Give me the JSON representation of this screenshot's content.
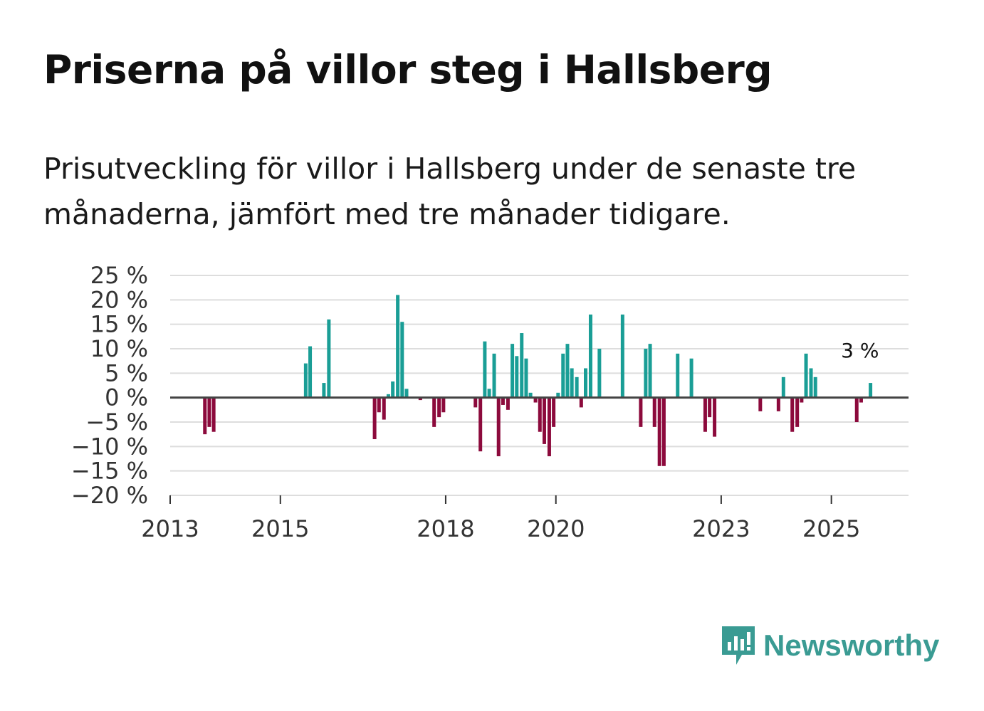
{
  "title": "Priserna på villor steg i Hallsberg",
  "subtitle": "Prisutveckling för villor i Hallsberg under de senaste tre månaderna, jämfört med tre månader tidigare.",
  "brand": {
    "name": "Newsworthy",
    "icon": "newsworthy-logo-icon",
    "color": "#3a9b93"
  },
  "colors": {
    "positive": "#1a9e96",
    "negative": "#8c0a3c",
    "grid": "#dddddd",
    "zero_line": "#444444"
  },
  "chart_data": {
    "type": "bar",
    "title": "",
    "xlabel": "",
    "ylabel": "",
    "ylim": [
      -20,
      25
    ],
    "yticks": [
      25,
      20,
      15,
      10,
      5,
      0,
      -5,
      -10,
      -15,
      -20
    ],
    "ytick_labels": [
      "25 %",
      "20 %",
      "15 %",
      "10 %",
      "5 %",
      "0 %",
      "−5 %",
      "−10 %",
      "−15 %",
      "−20 %"
    ],
    "xlim": [
      2013.0,
      2026.4
    ],
    "xticks": [
      2013,
      2015,
      2018,
      2020,
      2023,
      2025
    ],
    "xtick_labels": [
      "2013",
      "2015",
      "2018",
      "2020",
      "2023",
      "2025"
    ],
    "annotation": {
      "text": "3 %",
      "x": 2025.7,
      "y": 3
    },
    "x": [
      2013.63,
      2013.71,
      2013.79,
      2015.46,
      2015.54,
      2015.79,
      2015.88,
      2016.71,
      2016.79,
      2016.88,
      2016.96,
      2017.04,
      2017.13,
      2017.21,
      2017.29,
      2017.54,
      2017.79,
      2017.88,
      2017.96,
      2018.54,
      2018.63,
      2018.71,
      2018.79,
      2018.88,
      2018.96,
      2019.04,
      2019.13,
      2019.21,
      2019.29,
      2019.38,
      2019.46,
      2019.54,
      2019.63,
      2019.71,
      2019.79,
      2019.88,
      2019.96,
      2020.04,
      2020.13,
      2020.21,
      2020.29,
      2020.38,
      2020.46,
      2020.54,
      2020.63,
      2020.79,
      2021.21,
      2021.54,
      2021.63,
      2021.71,
      2021.79,
      2021.88,
      2021.96,
      2022.21,
      2022.46,
      2022.71,
      2022.79,
      2022.88,
      2023.71,
      2024.04,
      2024.13,
      2024.29,
      2024.38,
      2024.46,
      2024.54,
      2024.63,
      2024.71,
      2025.46,
      2025.54,
      2025.71
    ],
    "values": [
      -7.5,
      -6,
      -7,
      7,
      10.5,
      3,
      16,
      -8.5,
      -3,
      -4.5,
      0.7,
      3.3,
      21,
      15.5,
      1.8,
      -0.5,
      -6,
      -4,
      -3,
      -2,
      -11,
      11.5,
      1.8,
      9,
      -12,
      -1.5,
      -2.5,
      11,
      8.5,
      13.2,
      8,
      1,
      -1,
      -7,
      -9.5,
      -12,
      -6,
      1,
      9,
      11,
      6,
      4.2,
      -2,
      6,
      17,
      10,
      17,
      -6,
      10,
      11,
      -6,
      -14,
      -14,
      9,
      8,
      -7,
      -4,
      -8,
      -2.8,
      -2.8,
      4.2,
      -7,
      -6,
      -1,
      9,
      6,
      4.2,
      -5,
      -1,
      3
    ]
  }
}
